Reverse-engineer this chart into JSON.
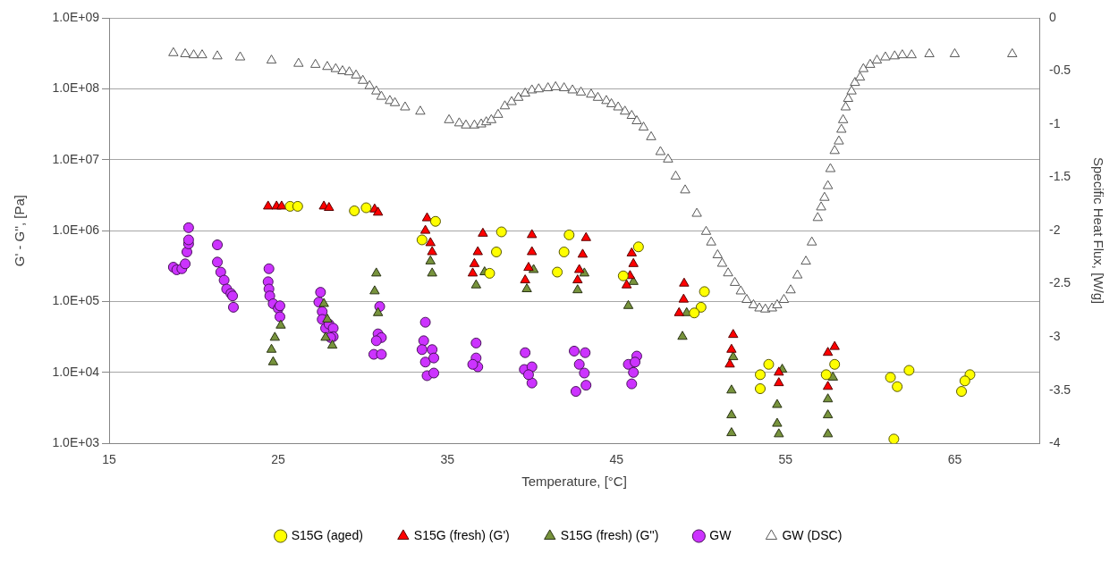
{
  "chart_data": {
    "type": "scatter",
    "xlabel": "Temperature, [°C]",
    "ylabel": "G' - G'', [Pa]",
    "y2label": "Specific Heat Flux, [W/g]",
    "xlim": [
      15,
      70
    ],
    "xticks": [
      15,
      25,
      35,
      45,
      55,
      65
    ],
    "ylim": [
      1000,
      1000000000
    ],
    "log": "y",
    "yticks": [
      {
        "value": 1000,
        "label": "1.0E+03"
      },
      {
        "value": 10000,
        "label": "1.0E+04"
      },
      {
        "value": 100000,
        "label": "1.0E+05"
      },
      {
        "value": 1000000,
        "label": "1.0E+06"
      },
      {
        "value": 10000000,
        "label": "1.0E+07"
      },
      {
        "value": 100000000,
        "label": "1.0E+08"
      },
      {
        "value": 1000000000,
        "label": "1.0E+09"
      }
    ],
    "y2lim": [
      -4,
      0
    ],
    "y2ticks": [
      -4,
      -3.5,
      -3,
      -2.5,
      -2,
      -1.5,
      -1,
      -0.5,
      0
    ],
    "grid": "y",
    "legend": "bottom",
    "series": [
      {
        "name": "S15G (aged)",
        "color": "#ffff00",
        "marker": "circle",
        "x": [
          25.7,
          26.15,
          29.5,
          30.2,
          34.3,
          33.5,
          38.2,
          37.9,
          37.5,
          42.2,
          41.9,
          41.5,
          46.3,
          45.4,
          50.2,
          50.0,
          49.6,
          54.0,
          53.5,
          53.5,
          57.9,
          57.4,
          61.2,
          62.3,
          61.6,
          61.4,
          65.9,
          65.4,
          65.6
        ],
        "values": [
          2200000,
          2200000,
          1900000,
          2100000,
          1350000,
          740000,
          960000,
          500000,
          250000,
          870000,
          500000,
          260000,
          590000,
          230000,
          138000,
          83000,
          69000,
          13000,
          9300,
          5900,
          13000,
          9300,
          8500,
          10700,
          6300,
          1150,
          9300,
          5400,
          7600
        ]
      },
      {
        "name": "S15G (fresh) (G')",
        "color": "#ff0000",
        "marker": "triangle",
        "x": [
          24.4,
          24.9,
          25.2,
          27.7,
          28.0,
          30.7,
          30.9,
          33.8,
          33.7,
          34.0,
          34.1,
          37.1,
          36.8,
          36.6,
          36.5,
          40.0,
          40.0,
          39.8,
          39.6,
          43.2,
          43.0,
          42.8,
          42.7,
          45.9,
          46.0,
          45.8,
          45.6,
          49.0,
          48.97,
          48.7,
          51.9,
          51.8,
          51.7,
          54.6,
          54.6,
          57.9,
          57.5,
          57.5
        ],
        "values": [
          2200000,
          2200000,
          2200000,
          2200000,
          2100000,
          2000000,
          1800000,
          1500000,
          1000000,
          670000,
          500000,
          910000,
          500000,
          340000,
          250000,
          870000,
          500000,
          300000,
          200000,
          790000,
          460000,
          280000,
          200000,
          480000,
          340000,
          230000,
          170000,
          180000,
          107000,
          69000,
          34000,
          21000,
          13000,
          10000,
          7100,
          23000,
          19000,
          6300
        ]
      },
      {
        "name": "S15G (fresh) (G'')",
        "color": "#77933c",
        "marker": "triangle",
        "x": [
          24.7,
          24.6,
          24.8,
          25.15,
          27.7,
          27.8,
          28.2,
          27.9,
          30.8,
          30.7,
          30.9,
          34.0,
          34.1,
          37.2,
          36.7,
          40.1,
          39.7,
          43.1,
          42.7,
          46.0,
          45.7,
          49.15,
          48.9,
          51.9,
          51.8,
          51.8,
          51.8,
          54.8,
          54.5,
          54.5,
          54.6,
          57.8,
          57.5,
          57.5,
          57.5
        ],
        "values": [
          14000,
          21000,
          31000,
          46000,
          93000,
          31000,
          24000,
          56000,
          250000,
          140000,
          69000,
          370000,
          250000,
          260000,
          170000,
          280000,
          150000,
          250000,
          145000,
          190000,
          87000,
          69000,
          32000,
          16500,
          5600,
          2500,
          1400,
          11000,
          3500,
          1900,
          1350,
          8500,
          4200,
          2500,
          1350
        ]
      },
      {
        "name": "GW",
        "color": "#cc33ff",
        "marker": "circle",
        "x": [
          18.8,
          19.0,
          19.3,
          19.5,
          19.6,
          19.7,
          19.7,
          19.7,
          21.4,
          21.4,
          21.6,
          21.8,
          21.95,
          22.2,
          22.3,
          22.35,
          24.45,
          24.4,
          24.45,
          24.5,
          24.7,
          25.0,
          25.1,
          25.1,
          27.5,
          27.4,
          27.6,
          27.6,
          27.8,
          28.0,
          28.25,
          28.25,
          28.1,
          31.0,
          30.9,
          31.1,
          30.65,
          31.1,
          30.8,
          33.7,
          33.6,
          33.5,
          34.1,
          33.7,
          34.2,
          33.8,
          34.2,
          36.7,
          36.7,
          36.8,
          36.5,
          39.6,
          39.55,
          40.0,
          40.0,
          39.8,
          42.5,
          43.15,
          42.8,
          43.1,
          42.6,
          43.2,
          46.2,
          45.7,
          46.0,
          45.9,
          46.1
        ],
        "values": [
          305000,
          280000,
          290000,
          340000,
          500000,
          650000,
          740000,
          1100000,
          630000,
          360000,
          260000,
          200000,
          150000,
          130000,
          120000,
          83000,
          290000,
          190000,
          150000,
          120000,
          93000,
          80000,
          87000,
          61000,
          135000,
          98000,
          72000,
          56000,
          42000,
          48000,
          42000,
          32000,
          31000,
          85000,
          35000,
          31000,
          18000,
          18000,
          28000,
          51000,
          28000,
          21000,
          21000,
          14000,
          16000,
          9000,
          9800,
          26000,
          16000,
          12000,
          13000,
          19000,
          11000,
          12000,
          7100,
          9300,
          20000,
          19000,
          13000,
          9800,
          5400,
          6600,
          17000,
          13000,
          10000,
          6900,
          14000
        ]
      },
      {
        "name": "GW (DSC)",
        "color": "#ffffff",
        "marker": "triangle",
        "axis": "y2",
        "x": [
          18.8,
          19.5,
          20.0,
          20.5,
          21.4,
          22.75,
          24.6,
          26.2,
          27.2,
          27.9,
          28.4,
          28.8,
          29.2,
          29.6,
          30.0,
          30.4,
          30.8,
          31.1,
          31.6,
          31.9,
          32.5,
          33.4,
          35.1,
          35.7,
          36.1,
          36.6,
          37.0,
          37.3,
          37.6,
          38.0,
          38.4,
          38.8,
          39.2,
          39.6,
          40.0,
          40.4,
          40.95,
          41.4,
          41.9,
          42.4,
          42.9,
          43.5,
          43.9,
          44.4,
          44.7,
          45.1,
          45.5,
          45.9,
          46.2,
          46.6,
          47.05,
          47.6,
          48.05,
          48.5,
          49.06,
          49.75,
          50.3,
          50.6,
          50.98,
          51.25,
          51.6,
          52.0,
          52.35,
          52.7,
          53.1,
          53.45,
          53.8,
          54.2,
          54.5,
          54.9,
          55.3,
          55.7,
          56.2,
          56.55,
          56.9,
          57.1,
          57.3,
          57.5,
          57.65,
          57.9,
          58.15,
          58.3,
          58.4,
          58.55,
          58.7,
          58.9,
          59.1,
          59.4,
          59.6,
          60.0,
          60.4,
          60.9,
          61.45,
          61.9,
          62.45,
          63.5,
          65.0,
          68.4
        ],
        "values": [
          -0.33,
          -0.34,
          -0.35,
          -0.35,
          -0.36,
          -0.37,
          -0.4,
          -0.43,
          -0.44,
          -0.46,
          -0.48,
          -0.5,
          -0.51,
          -0.54,
          -0.59,
          -0.64,
          -0.69,
          -0.74,
          -0.78,
          -0.8,
          -0.84,
          -0.88,
          -0.96,
          -0.99,
          -1.01,
          -1.01,
          -1.0,
          -0.98,
          -0.96,
          -0.91,
          -0.83,
          -0.79,
          -0.75,
          -0.71,
          -0.68,
          -0.67,
          -0.66,
          -0.65,
          -0.66,
          -0.68,
          -0.7,
          -0.72,
          -0.75,
          -0.78,
          -0.81,
          -0.84,
          -0.88,
          -0.92,
          -0.97,
          -1.03,
          -1.12,
          -1.26,
          -1.33,
          -1.49,
          -1.62,
          -1.84,
          -2.01,
          -2.11,
          -2.23,
          -2.31,
          -2.4,
          -2.49,
          -2.57,
          -2.65,
          -2.7,
          -2.73,
          -2.74,
          -2.73,
          -2.7,
          -2.65,
          -2.56,
          -2.42,
          -2.29,
          -2.11,
          -1.88,
          -1.78,
          -1.69,
          -1.58,
          -1.42,
          -1.25,
          -1.16,
          -1.05,
          -0.96,
          -0.84,
          -0.76,
          -0.69,
          -0.61,
          -0.56,
          -0.48,
          -0.44,
          -0.4,
          -0.37,
          -0.36,
          -0.35,
          -0.35,
          -0.34,
          -0.34,
          -0.34
        ]
      }
    ]
  }
}
